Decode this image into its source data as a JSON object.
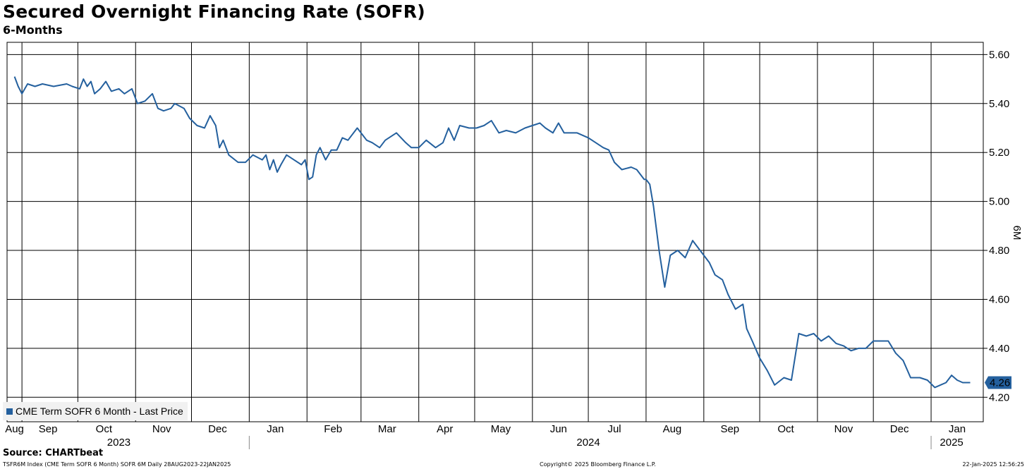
{
  "title": "Secured Overnight Financing Rate (SOFR)",
  "subtitle": "6-Months",
  "source": "Source: CHARTbeat",
  "footer": {
    "left": "TSFR6M Index (CME Term SOFR 6 Month) SOFR 6M  Daily 28AUG2023-22JAN2025",
    "center": "Copyright© 2025 Bloomberg Finance L.P.",
    "right": "22-Jan-2025 12:56:25"
  },
  "colors": {
    "line": "#24609e",
    "grid": "#000000",
    "last_badge": "#24609e"
  },
  "chart_data": {
    "type": "line",
    "title": "Secured Overnight Financing Rate (SOFR)",
    "subtitle": "6-Months",
    "ylabel": "6M",
    "ylim": [
      4.1,
      5.65
    ],
    "y_ticks": [
      "5.60",
      "5.40",
      "5.20",
      "5.00",
      "4.80",
      "4.60",
      "4.40",
      "4.20"
    ],
    "y_axis_side": "right",
    "x_tick_labels": [
      "Aug",
      "Sep",
      "Oct",
      "Nov",
      "Dec",
      "Jan",
      "Feb",
      "Mar",
      "Apr",
      "May",
      "Jun",
      "Jul",
      "Aug",
      "Sep",
      "Oct",
      "Nov",
      "Dec",
      "Jan"
    ],
    "x_tick_dates": [
      "2023-08-28",
      "2023-09-15",
      "2023-10-15",
      "2023-11-15",
      "2023-12-15",
      "2024-01-15",
      "2024-02-15",
      "2024-03-15",
      "2024-04-15",
      "2024-05-15",
      "2024-06-15",
      "2024-07-15",
      "2024-08-15",
      "2024-09-15",
      "2024-10-15",
      "2024-11-15",
      "2024-12-15",
      "2025-01-15"
    ],
    "month_gridlines": [
      "2023-09-01",
      "2023-10-01",
      "2023-11-01",
      "2023-12-01",
      "2024-01-01",
      "2024-02-01",
      "2024-03-01",
      "2024-04-01",
      "2024-05-01",
      "2024-06-01",
      "2024-07-01",
      "2024-08-01",
      "2024-09-01",
      "2024-10-01",
      "2024-11-01",
      "2024-12-01",
      "2025-01-01"
    ],
    "years": [
      {
        "label": "2023",
        "center": "2023-10-23"
      },
      {
        "label": "2024",
        "center": "2024-07-01"
      },
      {
        "label": "2025",
        "center": "2025-01-12"
      }
    ],
    "year_separators": [
      "2024-01-01",
      "2025-01-01"
    ],
    "grid": true,
    "legend": {
      "label": "CME Term SOFR 6 Month - Last Price",
      "position": "bottom-left"
    },
    "last_value": "4.26",
    "series": [
      {
        "name": "CME Term SOFR 6 Month - Last Price",
        "points": [
          [
            "2023-08-28",
            5.51
          ],
          [
            "2023-08-30",
            5.47
          ],
          [
            "2023-09-01",
            5.44
          ],
          [
            "2023-09-04",
            5.48
          ],
          [
            "2023-09-08",
            5.47
          ],
          [
            "2023-09-12",
            5.48
          ],
          [
            "2023-09-18",
            5.47
          ],
          [
            "2023-09-25",
            5.48
          ],
          [
            "2023-09-28",
            5.47
          ],
          [
            "2023-10-02",
            5.46
          ],
          [
            "2023-10-04",
            5.5
          ],
          [
            "2023-10-06",
            5.47
          ],
          [
            "2023-10-08",
            5.49
          ],
          [
            "2023-10-10",
            5.44
          ],
          [
            "2023-10-13",
            5.46
          ],
          [
            "2023-10-16",
            5.49
          ],
          [
            "2023-10-19",
            5.45
          ],
          [
            "2023-10-23",
            5.46
          ],
          [
            "2023-10-26",
            5.44
          ],
          [
            "2023-10-30",
            5.46
          ],
          [
            "2023-11-02",
            5.4
          ],
          [
            "2023-11-06",
            5.41
          ],
          [
            "2023-11-10",
            5.44
          ],
          [
            "2023-11-13",
            5.38
          ],
          [
            "2023-11-16",
            5.37
          ],
          [
            "2023-11-20",
            5.38
          ],
          [
            "2023-11-22",
            5.4
          ],
          [
            "2023-11-27",
            5.38
          ],
          [
            "2023-11-30",
            5.34
          ],
          [
            "2023-12-04",
            5.31
          ],
          [
            "2023-12-08",
            5.3
          ],
          [
            "2023-12-11",
            5.35
          ],
          [
            "2023-12-14",
            5.31
          ],
          [
            "2023-12-16",
            5.22
          ],
          [
            "2023-12-18",
            5.25
          ],
          [
            "2023-12-21",
            5.19
          ],
          [
            "2023-12-26",
            5.16
          ],
          [
            "2023-12-30",
            5.16
          ],
          [
            "2024-01-03",
            5.19
          ],
          [
            "2024-01-08",
            5.17
          ],
          [
            "2024-01-10",
            5.19
          ],
          [
            "2024-01-12",
            5.13
          ],
          [
            "2024-01-14",
            5.17
          ],
          [
            "2024-01-16",
            5.12
          ],
          [
            "2024-01-18",
            5.15
          ],
          [
            "2024-01-21",
            5.19
          ],
          [
            "2024-01-25",
            5.17
          ],
          [
            "2024-01-29",
            5.15
          ],
          [
            "2024-01-31",
            5.17
          ],
          [
            "2024-02-02",
            5.09
          ],
          [
            "2024-02-04",
            5.1
          ],
          [
            "2024-02-06",
            5.19
          ],
          [
            "2024-02-08",
            5.22
          ],
          [
            "2024-02-11",
            5.17
          ],
          [
            "2024-02-14",
            5.21
          ],
          [
            "2024-02-17",
            5.21
          ],
          [
            "2024-02-20",
            5.26
          ],
          [
            "2024-02-23",
            5.25
          ],
          [
            "2024-02-28",
            5.3
          ],
          [
            "2024-03-01",
            5.28
          ],
          [
            "2024-03-04",
            5.25
          ],
          [
            "2024-03-07",
            5.24
          ],
          [
            "2024-03-11",
            5.22
          ],
          [
            "2024-03-14",
            5.25
          ],
          [
            "2024-03-20",
            5.28
          ],
          [
            "2024-03-25",
            5.24
          ],
          [
            "2024-03-28",
            5.22
          ],
          [
            "2024-04-01",
            5.22
          ],
          [
            "2024-04-05",
            5.25
          ],
          [
            "2024-04-10",
            5.22
          ],
          [
            "2024-04-14",
            5.24
          ],
          [
            "2024-04-17",
            5.3
          ],
          [
            "2024-04-20",
            5.25
          ],
          [
            "2024-04-23",
            5.31
          ],
          [
            "2024-04-28",
            5.3
          ],
          [
            "2024-05-02",
            5.3
          ],
          [
            "2024-05-06",
            5.31
          ],
          [
            "2024-05-10",
            5.33
          ],
          [
            "2024-05-14",
            5.28
          ],
          [
            "2024-05-18",
            5.29
          ],
          [
            "2024-05-23",
            5.28
          ],
          [
            "2024-05-28",
            5.3
          ],
          [
            "2024-06-01",
            5.31
          ],
          [
            "2024-06-05",
            5.32
          ],
          [
            "2024-06-08",
            5.3
          ],
          [
            "2024-06-12",
            5.28
          ],
          [
            "2024-06-15",
            5.32
          ],
          [
            "2024-06-18",
            5.28
          ],
          [
            "2024-06-21",
            5.28
          ],
          [
            "2024-06-25",
            5.28
          ],
          [
            "2024-07-01",
            5.26
          ],
          [
            "2024-07-05",
            5.24
          ],
          [
            "2024-07-09",
            5.22
          ],
          [
            "2024-07-12",
            5.21
          ],
          [
            "2024-07-15",
            5.16
          ],
          [
            "2024-07-19",
            5.13
          ],
          [
            "2024-07-24",
            5.14
          ],
          [
            "2024-07-27",
            5.13
          ],
          [
            "2024-07-31",
            5.09
          ],
          [
            "2024-08-01",
            5.09
          ],
          [
            "2024-08-03",
            5.07
          ],
          [
            "2024-08-05",
            4.98
          ],
          [
            "2024-08-08",
            4.8
          ],
          [
            "2024-08-11",
            4.65
          ],
          [
            "2024-08-14",
            4.78
          ],
          [
            "2024-08-18",
            4.8
          ],
          [
            "2024-08-22",
            4.77
          ],
          [
            "2024-08-26",
            4.84
          ],
          [
            "2024-08-30",
            4.8
          ],
          [
            "2024-09-04",
            4.75
          ],
          [
            "2024-09-07",
            4.7
          ],
          [
            "2024-09-11",
            4.68
          ],
          [
            "2024-09-14",
            4.62
          ],
          [
            "2024-09-18",
            4.56
          ],
          [
            "2024-09-22",
            4.58
          ],
          [
            "2024-09-24",
            4.48
          ],
          [
            "2024-09-27",
            4.43
          ],
          [
            "2024-10-01",
            4.36
          ],
          [
            "2024-10-05",
            4.31
          ],
          [
            "2024-10-09",
            4.25
          ],
          [
            "2024-10-14",
            4.28
          ],
          [
            "2024-10-18",
            4.27
          ],
          [
            "2024-10-22",
            4.46
          ],
          [
            "2024-10-26",
            4.45
          ],
          [
            "2024-10-30",
            4.46
          ],
          [
            "2024-11-03",
            4.43
          ],
          [
            "2024-11-07",
            4.45
          ],
          [
            "2024-11-11",
            4.42
          ],
          [
            "2024-11-15",
            4.41
          ],
          [
            "2024-11-19",
            4.39
          ],
          [
            "2024-11-23",
            4.4
          ],
          [
            "2024-11-27",
            4.4
          ],
          [
            "2024-12-01",
            4.43
          ],
          [
            "2024-12-05",
            4.43
          ],
          [
            "2024-12-09",
            4.43
          ],
          [
            "2024-12-13",
            4.38
          ],
          [
            "2024-12-17",
            4.35
          ],
          [
            "2024-12-21",
            4.28
          ],
          [
            "2024-12-26",
            4.28
          ],
          [
            "2024-12-30",
            4.27
          ],
          [
            "2025-01-03",
            4.24
          ],
          [
            "2025-01-06",
            4.25
          ],
          [
            "2025-01-09",
            4.26
          ],
          [
            "2025-01-12",
            4.29
          ],
          [
            "2025-01-15",
            4.27
          ],
          [
            "2025-01-18",
            4.26
          ],
          [
            "2025-01-22",
            4.26
          ]
        ]
      }
    ]
  }
}
